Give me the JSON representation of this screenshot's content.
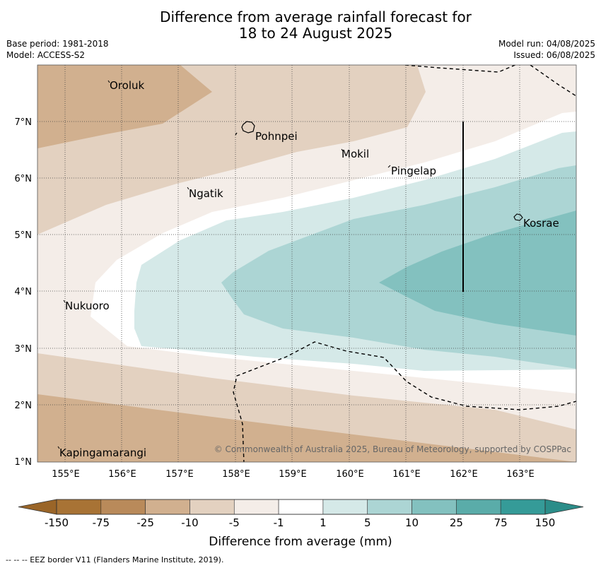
{
  "title_line1": "Difference from average rainfall forecast for",
  "title_line2": "18 to 24 August 2025",
  "base_period": "Base period: 1981-2018",
  "model": "Model: ACCESS-S2",
  "model_run": "Model run: 04/08/2025",
  "issued": "Issued: 06/08/2025",
  "places": [
    "Oroluk",
    "Pohnpei",
    "Mokil",
    "Pingelap",
    "Ngatik",
    "Kosrae",
    "Nukuoro",
    "Kapingamarangi"
  ],
  "x_ticks": [
    "155°E",
    "156°E",
    "157°E",
    "158°E",
    "159°E",
    "160°E",
    "161°E",
    "162°E",
    "163°E"
  ],
  "y_ticks": [
    "7°N",
    "6°N",
    "5°N",
    "4°N",
    "3°N",
    "2°N",
    "1°N"
  ],
  "copyright": "© Commonwealth of Australia 2025, Bureau of Meteorology, supported by COSPPac",
  "colorbar": {
    "labels": [
      "-150",
      "-75",
      "-25",
      "-10",
      "-5",
      "-1",
      "1",
      "5",
      "10",
      "25",
      "75",
      "150"
    ],
    "colors": [
      "#a87335",
      "#b98a5a",
      "#d1b08f",
      "#e3d1c0",
      "#f4ede8",
      "#ffffff",
      "#d5e9e8",
      "#acd5d4",
      "#83c1bf",
      "#5aaca9",
      "#359b98"
    ],
    "end_colors": [
      "#9a6528",
      "#2b8d89"
    ],
    "xlabel": "Difference from average (mm)"
  },
  "legend_note": "-- -- -- EEZ border V11 (Flanders Marine Institute, 2019)."
}
